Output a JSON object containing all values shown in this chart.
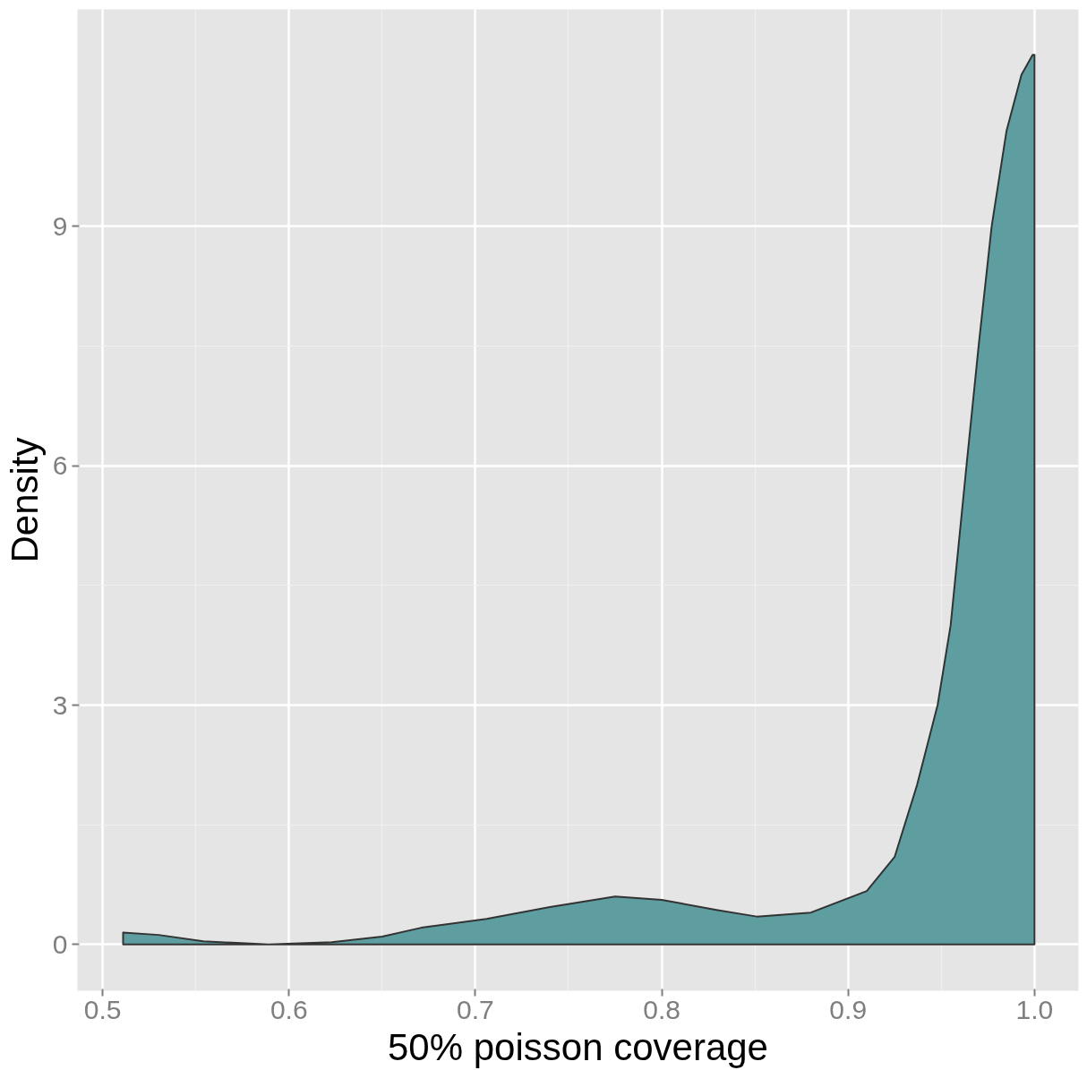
{
  "chart_data": {
    "type": "area",
    "xlabel": "50% poisson coverage",
    "ylabel": "Density",
    "x": [
      0.511,
      0.53,
      0.554,
      0.589,
      0.623,
      0.65,
      0.671,
      0.706,
      0.74,
      0.775,
      0.8,
      0.83,
      0.851,
      0.88,
      0.91,
      0.925,
      0.937,
      0.948,
      0.955,
      0.9635,
      0.97,
      0.977,
      0.985,
      0.993,
      0.999,
      1.0
    ],
    "series": [
      {
        "color": "#5f9ea0",
        "values": [
          0.15,
          0.12,
          0.04,
          0.0,
          0.03,
          0.1,
          0.21,
          0.32,
          0.47,
          0.6,
          0.56,
          0.43,
          0.35,
          0.4,
          0.67,
          1.1,
          2.0,
          3.0,
          4.0,
          6.0,
          7.5,
          9.0,
          10.2,
          10.9,
          11.15,
          11.15
        ]
      }
    ],
    "xlim": [
      0.4865,
      1.0236
    ],
    "ylim": [
      -0.58,
      11.72
    ],
    "xticks": [
      0.5,
      0.6,
      0.7,
      0.8,
      0.9,
      {
        "value": 1.0,
        "label": "1.0"
      }
    ],
    "yticks": [
      0,
      3,
      6,
      9
    ],
    "grid": true
  }
}
